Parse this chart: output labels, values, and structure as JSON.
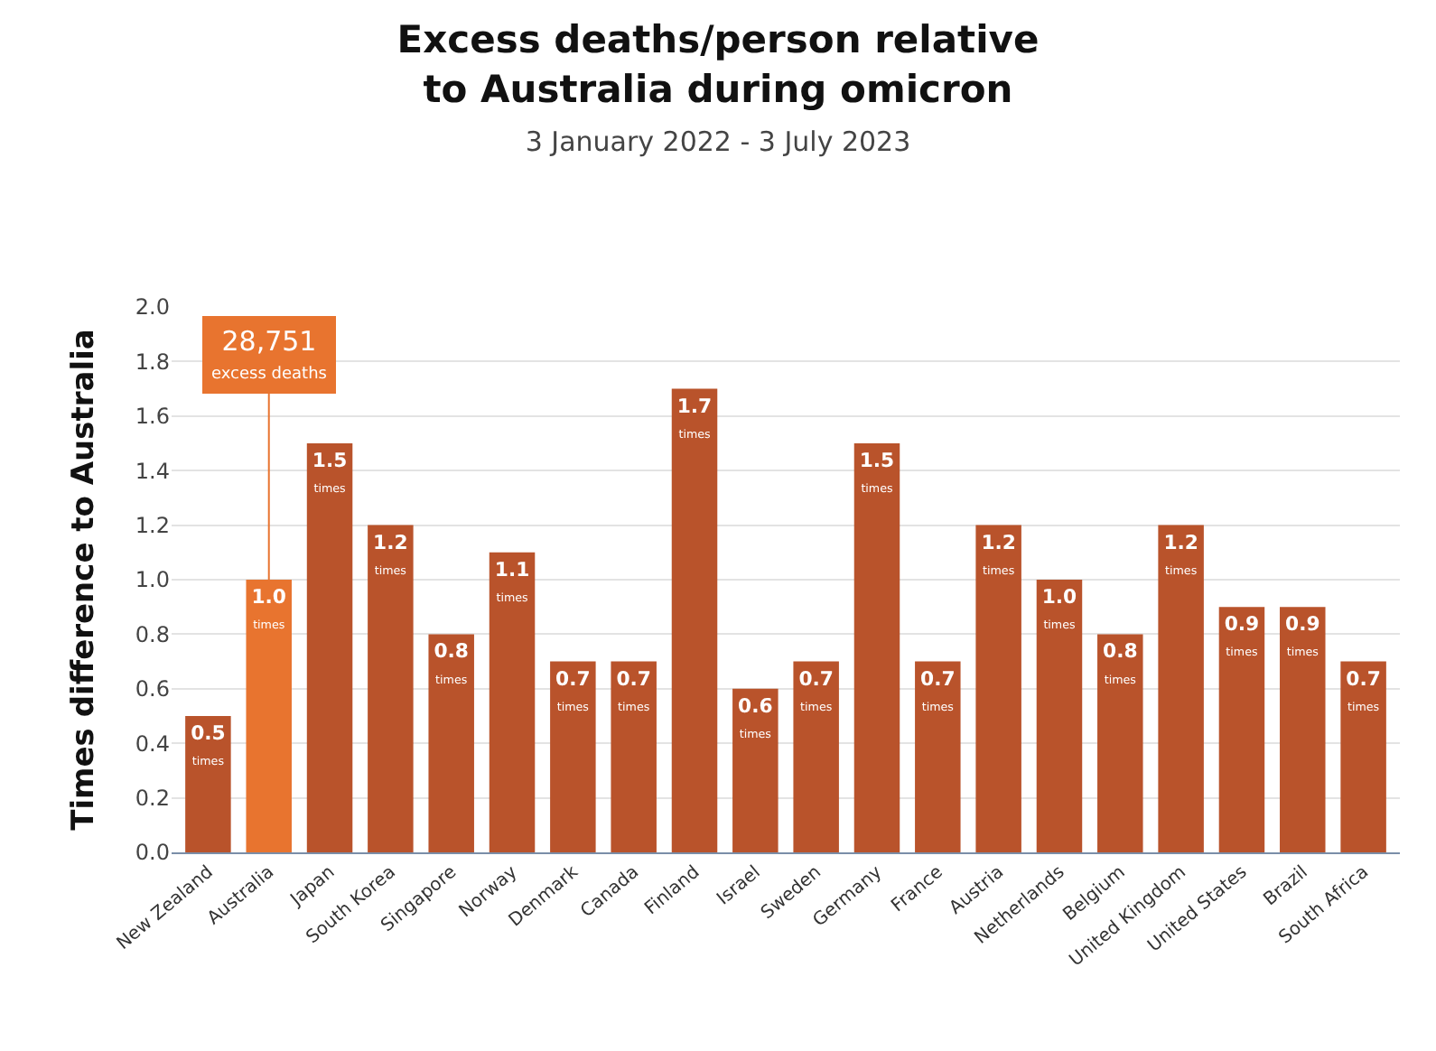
{
  "chart_data": {
    "type": "bar",
    "title": "Excess deaths/person relative\nto Australia during omicron",
    "subtitle": "3 January 2022 - 3 July 2023",
    "ylabel": "Times difference to Australia",
    "categories": [
      "New Zealand",
      "Australia",
      "Japan",
      "South Korea",
      "Singapore",
      "Norway",
      "Denmark",
      "Canada",
      "Finland",
      "Israel",
      "Sweden",
      "Germany",
      "France",
      "Austria",
      "Netherlands",
      "Belgium",
      "United Kingdom",
      "United States",
      "Brazil",
      "South Africa"
    ],
    "values": [
      0.5,
      1.0,
      1.5,
      1.2,
      0.8,
      1.1,
      0.7,
      0.7,
      1.7,
      0.6,
      0.7,
      1.5,
      0.7,
      1.2,
      1.0,
      0.8,
      1.2,
      0.9,
      0.9,
      0.7
    ],
    "colors": [
      "#b9532b",
      "#e8742f",
      "#b9532b",
      "#b9532b",
      "#b9532b",
      "#b9532b",
      "#b9532b",
      "#b9532b",
      "#b9532b",
      "#b9532b",
      "#b9532b",
      "#b9532b",
      "#b9532b",
      "#b9532b",
      "#b9532b",
      "#b9532b",
      "#b9532b",
      "#b9532b",
      "#b9532b",
      "#b9532b"
    ],
    "value_labels": [
      "0.5\ntimes",
      "1.0\ntimes",
      "1.5\ntimes",
      "1.2\ntimes",
      "0.8\ntimes",
      "1.1\ntimes",
      "0.7\ntimes",
      "0.7\ntimes",
      "1.7\ntimes",
      "0.6\ntimes",
      "0.7\ntimes",
      "1.5\ntimes",
      "0.7\ntimes",
      "1.2\ntimes",
      "1.0\ntimes",
      "0.8\ntimes",
      "1.2\ntimes",
      "0.9\ntimes",
      "0.9\ntimes",
      "0.7\ntimes"
    ],
    "annotations": [
      {
        "text": "28,751\nexcess deaths",
        "x": "Australia",
        "y": 1.0
      }
    ],
    "ylim": [
      0,
      2.0
    ],
    "yticks": [
      {
        "value": 0,
        "label": "0.0"
      },
      0.2,
      0.4,
      0.6,
      0.8,
      {
        "value": 1,
        "label": "1.0"
      },
      1.2,
      1.4,
      1.6,
      1.8,
      {
        "value": 2,
        "label": "2.0"
      }
    ],
    "grid": "y"
  }
}
